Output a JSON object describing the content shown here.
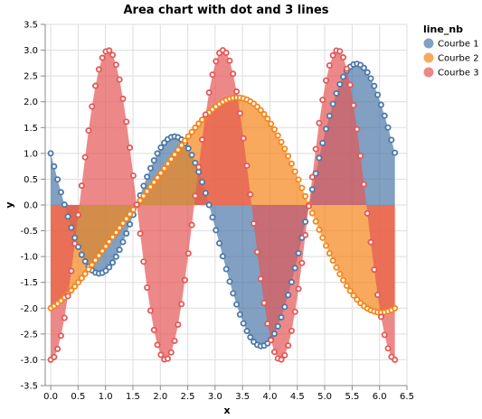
{
  "chart_data": {
    "type": "area",
    "title": "Area chart with dot and 3 lines",
    "xlabel": "x",
    "ylabel": "y",
    "xlim": [
      -0.1,
      6.5
    ],
    "ylim": [
      -3.5,
      3.5
    ],
    "x_ticks": [
      "0.0",
      "0.5",
      "1.0",
      "1.5",
      "2.0",
      "2.5",
      "3.0",
      "3.5",
      "4.0",
      "4.5",
      "5.0",
      "5.5",
      "6.0",
      "6.5"
    ],
    "y_ticks": [
      "3.5",
      "3.0",
      "2.5",
      "2.0",
      "1.5",
      "1.0",
      "0.5",
      "0.0",
      "-0.5",
      "-1.0",
      "-1.5",
      "-2.0",
      "-2.5",
      "-3.0",
      "-3.5"
    ],
    "grid": true,
    "legend": {
      "title": "line_nb",
      "position": "top-right"
    },
    "x_range": [
      0,
      6.28
    ],
    "points_per_series": 101,
    "series": [
      {
        "name": "Courbe 1",
        "color": "#4c78a8",
        "formula": "cos(x) - 2 sin(2x)"
      },
      {
        "name": "Courbe 2",
        "color": "#f58518",
        "formula": "-2 cos(x) + 0.3 sin(2x)"
      },
      {
        "name": "Courbe 3",
        "color": "#e45756",
        "formula": "-3 cos(3x)"
      }
    ]
  }
}
